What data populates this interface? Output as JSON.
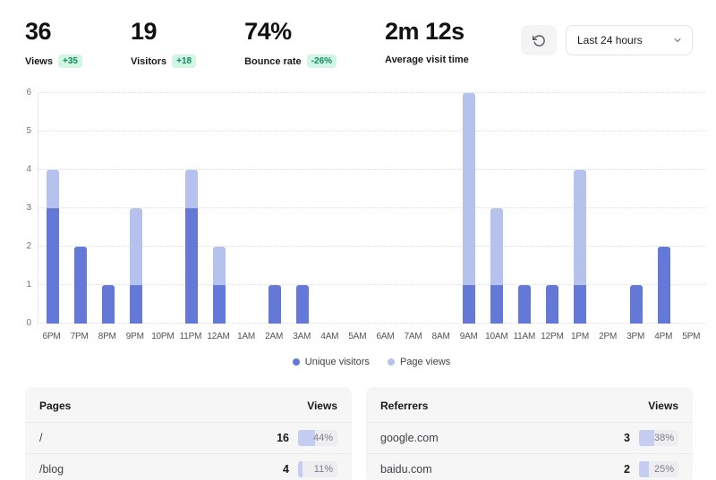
{
  "colors": {
    "accent_dark": "#6478d8",
    "accent_light": "#b6c2ee",
    "badge_bg": "#d3f5e4",
    "badge_text": "#0e8a5f"
  },
  "stats": [
    {
      "value": "36",
      "label": "Views",
      "badge": "+35"
    },
    {
      "value": "19",
      "label": "Visitors",
      "badge": "+18"
    },
    {
      "value": "74%",
      "label": "Bounce rate",
      "badge": "-26%"
    },
    {
      "value": "2m 12s",
      "label": "Average visit time",
      "badge": ""
    }
  ],
  "controls": {
    "refresh_icon": "rotate-ccw-icon",
    "range_selected": "Last 24 hours",
    "chevron_icon": "chevron-down-icon"
  },
  "chart_data": {
    "type": "bar",
    "categories": [
      "6PM",
      "7PM",
      "8PM",
      "9PM",
      "10PM",
      "11PM",
      "12AM",
      "1AM",
      "2AM",
      "3AM",
      "4AM",
      "5AM",
      "6AM",
      "7AM",
      "8AM",
      "9AM",
      "10AM",
      "11AM",
      "12PM",
      "1PM",
      "2PM",
      "3PM",
      "4PM",
      "5PM"
    ],
    "series": [
      {
        "name": "Unique visitors",
        "color": "#6478d8",
        "values": [
          3,
          2,
          1,
          1,
          0,
          3,
          1,
          0,
          1,
          1,
          0,
          0,
          0,
          0,
          0,
          1,
          1,
          1,
          1,
          1,
          0,
          1,
          2,
          0
        ]
      },
      {
        "name": "Page views",
        "color": "#b6c2ee",
        "values": [
          4,
          2,
          1,
          3,
          0,
          4,
          2,
          0,
          1,
          1,
          0,
          0,
          0,
          0,
          0,
          6,
          3,
          1,
          1,
          4,
          0,
          1,
          2,
          0
        ]
      }
    ],
    "ylim": [
      0,
      6
    ],
    "yticks": [
      0,
      1,
      2,
      3,
      4,
      5,
      6
    ],
    "grid": "dotted-horizontal",
    "legend_position": "bottom",
    "bar_style": "overlay"
  },
  "tables": [
    {
      "title": "Pages",
      "value_header": "Views",
      "rows": [
        {
          "name": "/",
          "value": "16",
          "pct": "44%",
          "pct_value": 44
        },
        {
          "name": "/blog",
          "value": "4",
          "pct": "11%",
          "pct_value": 11
        }
      ]
    },
    {
      "title": "Referrers",
      "value_header": "Views",
      "rows": [
        {
          "name": "google.com",
          "value": "3",
          "pct": "38%",
          "pct_value": 38
        },
        {
          "name": "baidu.com",
          "value": "2",
          "pct": "25%",
          "pct_value": 25
        }
      ]
    }
  ]
}
